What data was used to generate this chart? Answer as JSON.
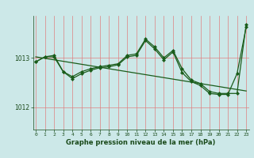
{
  "title": "Graphe pression niveau de la mer (hPa)",
  "bg_color": "#cce8e8",
  "line_color": "#1a5c1a",
  "grid_v_color": "#e08080",
  "grid_h_color": "#e08080",
  "x_ticks": [
    0,
    1,
    2,
    3,
    4,
    5,
    6,
    7,
    8,
    9,
    10,
    11,
    12,
    13,
    14,
    15,
    16,
    17,
    18,
    19,
    20,
    21,
    22,
    23
  ],
  "ylim": [
    1011.55,
    1013.85
  ],
  "yticks": [
    1012,
    1013
  ],
  "line1": [
    1012.92,
    1013.02,
    1013.02,
    1012.72,
    1012.62,
    1012.72,
    1012.78,
    1012.82,
    1012.85,
    1012.88,
    1013.05,
    1013.08,
    1013.38,
    1013.22,
    1013.0,
    1013.15,
    1012.78,
    1012.55,
    1012.48,
    1012.32,
    1012.28,
    1012.28,
    1012.28,
    1013.68
  ],
  "line2": [
    1012.92,
    1013.02,
    1013.05,
    1012.72,
    1012.58,
    1012.68,
    1012.75,
    1012.8,
    1012.82,
    1012.86,
    1013.02,
    1013.05,
    1013.35,
    1013.18,
    1012.96,
    1013.12,
    1012.7,
    1012.52,
    1012.44,
    1012.28,
    1012.26,
    1012.26,
    1012.68,
    1013.62
  ],
  "trend": [
    1013.02,
    1012.99,
    1012.96,
    1012.93,
    1012.9,
    1012.87,
    1012.84,
    1012.81,
    1012.78,
    1012.75,
    1012.72,
    1012.69,
    1012.66,
    1012.63,
    1012.6,
    1012.57,
    1012.54,
    1012.51,
    1012.48,
    1012.45,
    1012.42,
    1012.39,
    1012.36,
    1012.33
  ]
}
